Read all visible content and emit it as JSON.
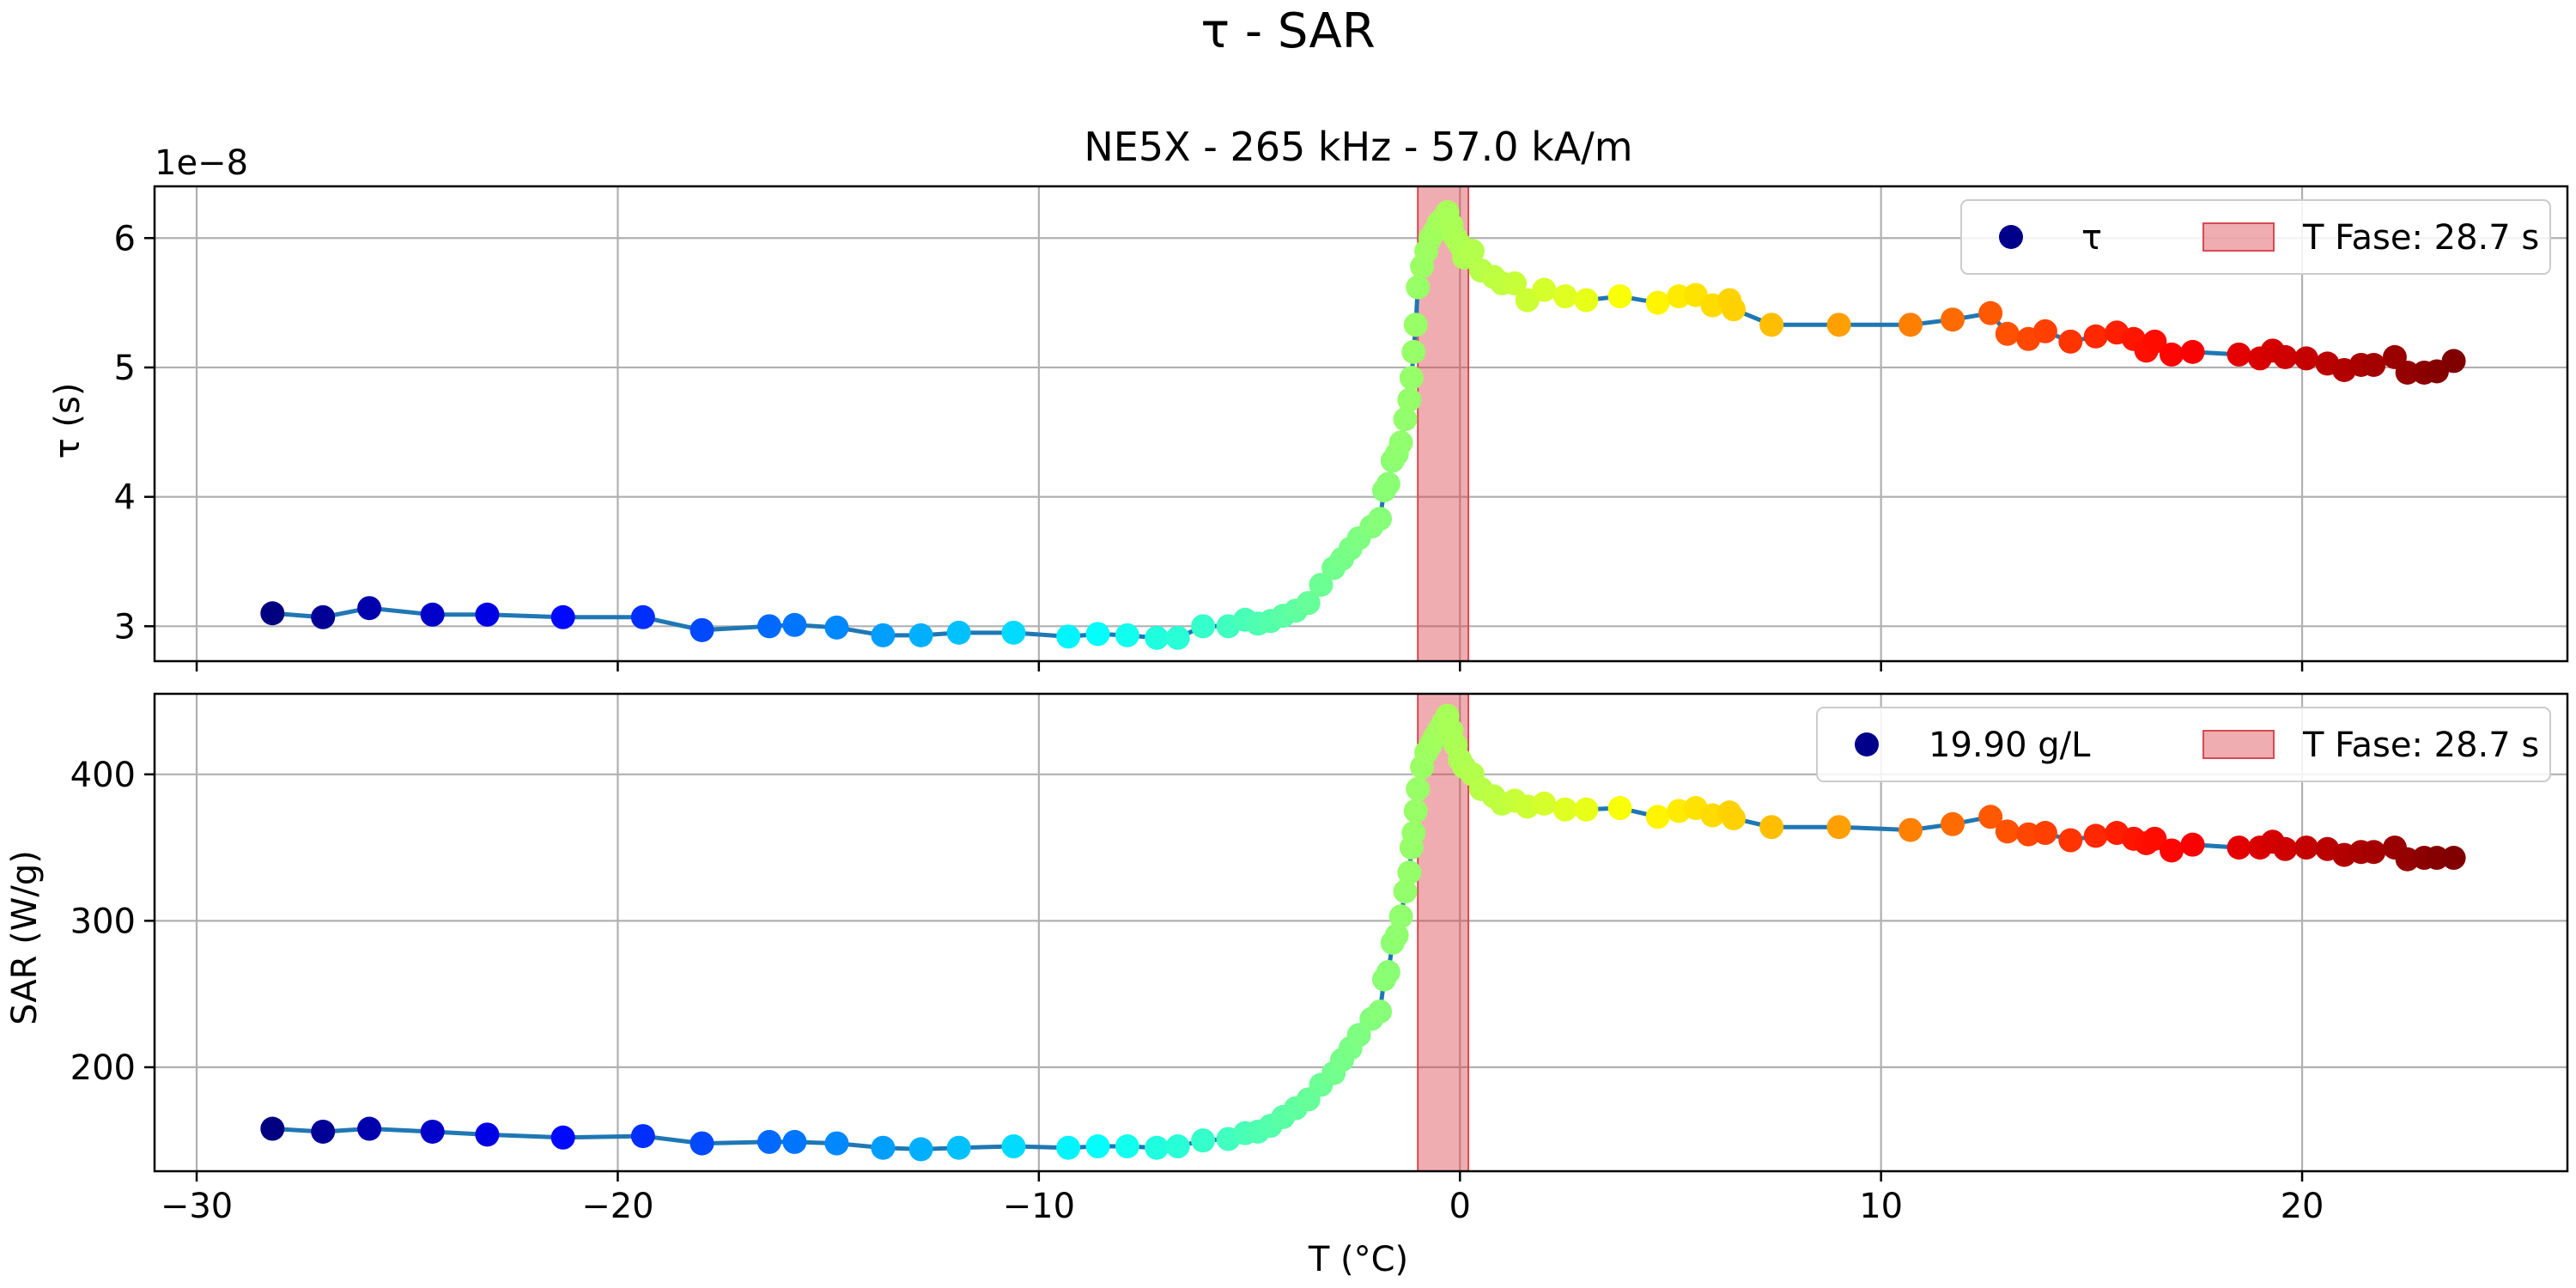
{
  "figure": {
    "suptitle": "τ - SAR"
  },
  "chart_data": [
    {
      "type": "scatter",
      "title": "NE5X - 265 kHz - 57.0 kA/m",
      "xlabel": "",
      "ylabel": "τ (s)",
      "y_offset_label": "1e−8",
      "xlim": [
        -31,
        26.3
      ],
      "ylim": [
        2.73,
        6.4
      ],
      "y_scale_note": "values ×1e-8",
      "yticks": [
        3,
        4,
        5,
        6
      ],
      "ytick_labels": [
        "3",
        "4",
        "5",
        "6"
      ],
      "grid": true,
      "legend": {
        "placement": "top-right",
        "entries": [
          {
            "label": "τ",
            "kind": "marker",
            "color": "#00008b"
          },
          {
            "label": "T Fase: 28.7 s",
            "kind": "patch",
            "color": "#e8868a"
          }
        ]
      },
      "phase_band": [
        -1.0,
        0.2
      ],
      "colormap": "jet",
      "series": [
        {
          "x": [
            -28.2,
            -27.0,
            -25.9,
            -24.4,
            -23.1,
            -21.3,
            -19.4,
            -18.0,
            -16.4,
            -15.8,
            -14.8,
            -13.7,
            -12.8,
            -11.9,
            -10.6,
            -9.3,
            -8.6,
            -7.9,
            -7.2,
            -6.7,
            -6.1,
            -5.5,
            -5.1,
            -4.8,
            -4.5,
            -4.2,
            -3.9,
            -3.6,
            -3.3,
            -3.0,
            -2.8,
            -2.6,
            -2.4,
            -2.1,
            -1.9,
            -1.8,
            -1.7,
            -1.6,
            -1.5,
            -1.4,
            -1.3,
            -1.2,
            -1.15,
            -1.1,
            -1.05,
            -1.0,
            -0.9,
            -0.8,
            -0.7,
            -0.6,
            -0.5,
            -0.4,
            -0.3,
            -0.2,
            -0.1,
            0.0,
            0.1,
            0.3,
            0.5,
            0.8,
            1.0,
            1.3,
            1.6,
            2.0,
            2.5,
            3.0,
            3.8,
            4.7,
            5.2,
            5.6,
            6.0,
            6.4,
            6.5,
            7.4,
            9.0,
            10.7,
            11.7,
            12.6,
            13.0,
            13.5,
            13.9,
            14.5,
            15.1,
            15.6,
            16.0,
            16.3,
            16.5,
            16.9,
            17.4,
            18.5,
            19.0,
            19.3,
            19.6,
            20.1,
            20.6,
            21.0,
            21.4,
            21.7,
            22.2,
            22.5,
            22.9,
            23.2,
            23.6
          ],
          "y": [
            3.1,
            3.07,
            3.14,
            3.09,
            3.09,
            3.07,
            3.07,
            2.97,
            3.0,
            3.01,
            2.99,
            2.93,
            2.93,
            2.95,
            2.95,
            2.92,
            2.94,
            2.93,
            2.91,
            2.91,
            3.0,
            3.0,
            3.05,
            3.02,
            3.04,
            3.08,
            3.12,
            3.18,
            3.32,
            3.45,
            3.52,
            3.6,
            3.68,
            3.77,
            3.83,
            4.05,
            4.1,
            4.28,
            4.33,
            4.42,
            4.6,
            4.75,
            4.92,
            5.12,
            5.33,
            5.62,
            5.78,
            5.9,
            6.0,
            6.05,
            6.12,
            6.15,
            6.2,
            6.1,
            6.0,
            5.95,
            5.85,
            5.9,
            5.75,
            5.7,
            5.65,
            5.65,
            5.52,
            5.6,
            5.55,
            5.52,
            5.55,
            5.5,
            5.55,
            5.56,
            5.48,
            5.52,
            5.45,
            5.33,
            5.33,
            5.33,
            5.37,
            5.42,
            5.26,
            5.22,
            5.28,
            5.2,
            5.24,
            5.27,
            5.22,
            5.13,
            5.2,
            5.1,
            5.12,
            5.1,
            5.07,
            5.13,
            5.08,
            5.07,
            5.03,
            4.98,
            5.02,
            5.02,
            5.08,
            4.96,
            4.96,
            4.97,
            5.05
          ]
        }
      ]
    },
    {
      "type": "scatter",
      "title": "",
      "xlabel": "T (°C)",
      "ylabel": "SAR (W/g)",
      "xlim": [
        -31,
        26.3
      ],
      "ylim": [
        129,
        455
      ],
      "yticks": [
        200,
        300,
        400
      ],
      "ytick_labels": [
        "200",
        "300",
        "400"
      ],
      "xticks": [
        -30,
        -20,
        -10,
        0,
        10,
        20
      ],
      "xtick_labels": [
        "−30",
        "−20",
        "−10",
        "0",
        "10",
        "20"
      ],
      "grid": true,
      "legend": {
        "placement": "top-right",
        "entries": [
          {
            "label": "19.90 g/L",
            "kind": "marker",
            "color": "#00008b"
          },
          {
            "label": "T Fase: 28.7 s",
            "kind": "patch",
            "color": "#e8868a"
          }
        ]
      },
      "phase_band": [
        -1.0,
        0.2
      ],
      "colormap": "jet",
      "series": [
        {
          "x": [
            -28.2,
            -27.0,
            -25.9,
            -24.4,
            -23.1,
            -21.3,
            -19.4,
            -18.0,
            -16.4,
            -15.8,
            -14.8,
            -13.7,
            -12.8,
            -11.9,
            -10.6,
            -9.3,
            -8.6,
            -7.9,
            -7.2,
            -6.7,
            -6.1,
            -5.5,
            -5.1,
            -4.8,
            -4.5,
            -4.2,
            -3.9,
            -3.6,
            -3.3,
            -3.0,
            -2.8,
            -2.6,
            -2.4,
            -2.1,
            -1.9,
            -1.8,
            -1.7,
            -1.6,
            -1.5,
            -1.4,
            -1.3,
            -1.2,
            -1.15,
            -1.1,
            -1.05,
            -1.0,
            -0.9,
            -0.8,
            -0.7,
            -0.6,
            -0.5,
            -0.4,
            -0.3,
            -0.2,
            -0.1,
            0.0,
            0.1,
            0.3,
            0.5,
            0.8,
            1.0,
            1.3,
            1.6,
            2.0,
            2.5,
            3.0,
            3.8,
            4.7,
            5.2,
            5.6,
            6.0,
            6.4,
            6.5,
            7.4,
            9.0,
            10.7,
            11.7,
            12.6,
            13.0,
            13.5,
            13.9,
            14.5,
            15.1,
            15.6,
            16.0,
            16.3,
            16.5,
            16.9,
            17.4,
            18.5,
            19.0,
            19.3,
            19.6,
            20.1,
            20.6,
            21.0,
            21.4,
            21.7,
            22.2,
            22.5,
            22.9,
            23.2,
            23.6
          ],
          "y": [
            158,
            156,
            158,
            156,
            154,
            152,
            153,
            148,
            149,
            149,
            148,
            145,
            144,
            145,
            146,
            145,
            146,
            146,
            145,
            146,
            150,
            151,
            155,
            156,
            160,
            166,
            172,
            178,
            188,
            196,
            205,
            213,
            222,
            233,
            238,
            260,
            265,
            285,
            290,
            303,
            320,
            333,
            350,
            360,
            375,
            390,
            405,
            415,
            420,
            425,
            430,
            435,
            440,
            430,
            420,
            410,
            405,
            400,
            390,
            385,
            380,
            382,
            378,
            380,
            376,
            376,
            377,
            371,
            375,
            377,
            372,
            374,
            370,
            364,
            364,
            362,
            366,
            371,
            361,
            359,
            360,
            355,
            358,
            360,
            356,
            353,
            356,
            348,
            352,
            350,
            350,
            354,
            349,
            350,
            349,
            345,
            347,
            347,
            350,
            342,
            343,
            343,
            343
          ]
        }
      ]
    }
  ]
}
